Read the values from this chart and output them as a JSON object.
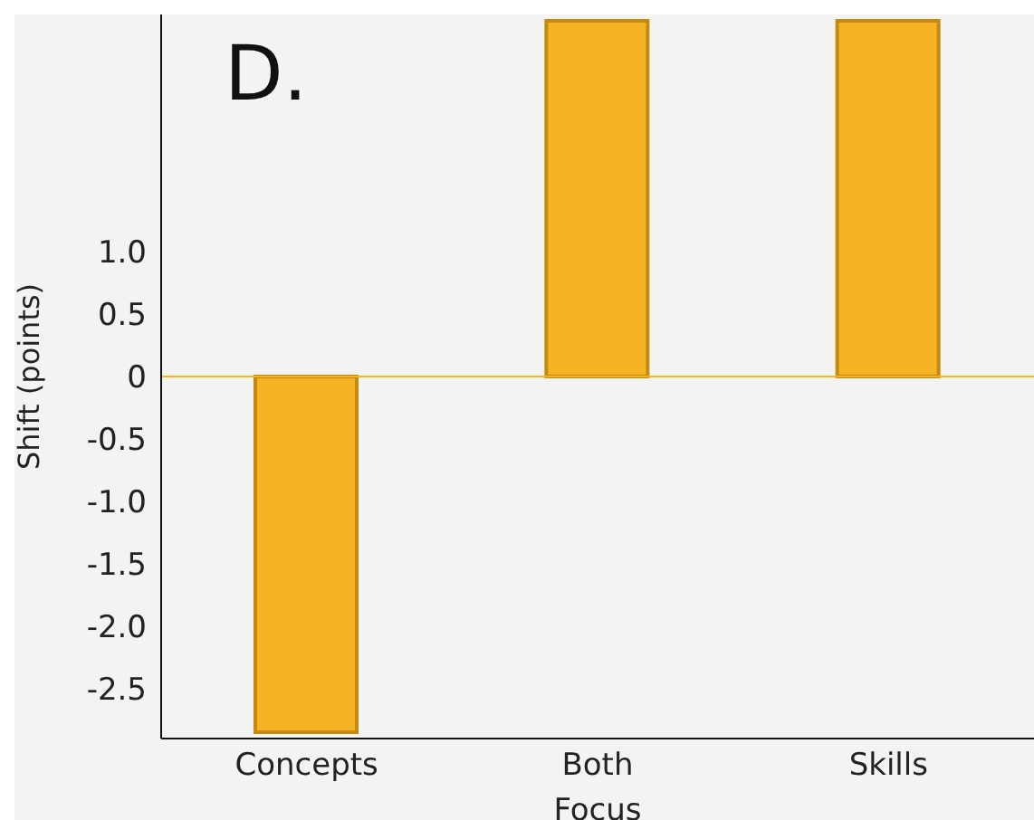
{
  "chart_data": {
    "type": "bar",
    "title": "D.",
    "xlabel": "Focus",
    "ylabel": "Shift (points)",
    "categories": [
      "Concepts",
      "Both",
      "Skills"
    ],
    "values": [
      -2.85,
      2.85,
      2.85
    ],
    "color": "#f6b324",
    "ylim": [
      -2.9,
      2.9
    ],
    "yticks": [
      {
        "value": -2.5,
        "label": "-2.5"
      },
      {
        "value": -2,
        "label": "-2.0"
      },
      {
        "value": -1.5,
        "label": "-1.5"
      },
      {
        "value": -1,
        "label": "-1.0"
      },
      {
        "value": -0.5,
        "label": "-0.5"
      },
      0,
      {
        "value": 0.5,
        "label": "0.5"
      },
      {
        "value": 1,
        "label": "1.0"
      }
    ],
    "ref_lines": [
      {
        "axis": "y",
        "value": 0,
        "color": "#f6b324"
      }
    ],
    "grid": false,
    "legend": false
  }
}
